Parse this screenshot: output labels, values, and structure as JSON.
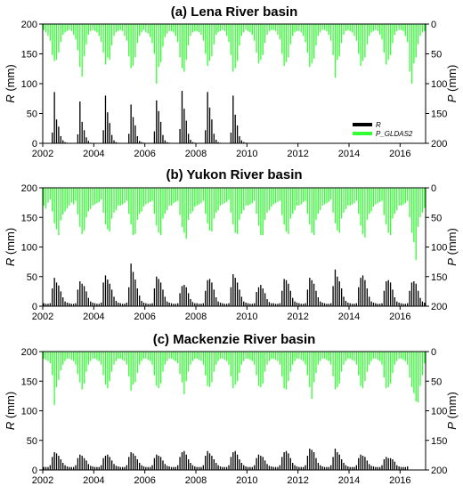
{
  "chart_data": [
    {
      "type": "bar",
      "title": "(a) Lena River basin",
      "left_axis": {
        "label": "R",
        "unit": "(mm)",
        "ylim": [
          0,
          200
        ],
        "ticks": [
          0,
          50,
          100,
          150,
          200
        ]
      },
      "right_axis": {
        "label": "P",
        "unit": "(mm)",
        "ylim": [
          200,
          0
        ],
        "ticks": [
          0,
          50,
          100,
          150,
          200
        ],
        "inverted": true
      },
      "x_ticks": [
        "2002",
        "2004",
        "2006",
        "2008",
        "2010",
        "2012",
        "2014",
        "2016"
      ],
      "x_range": [
        2002,
        2017
      ],
      "legend": {
        "placement": "right",
        "entries": [
          {
            "label": "R",
            "color": "#000000"
          },
          {
            "label": "P_GLDAS2",
            "color": "#33ff33"
          }
        ]
      },
      "series": [
        {
          "label": "R",
          "axis": "left",
          "color": "#000000",
          "start": "2002-01",
          "values": [
            0,
            0,
            0,
            0,
            18,
            86,
            40,
            28,
            12,
            5,
            2,
            1,
            0,
            0,
            0,
            0,
            15,
            70,
            36,
            22,
            10,
            4,
            1,
            0,
            0,
            0,
            0,
            0,
            22,
            80,
            52,
            34,
            14,
            5,
            2,
            1,
            0,
            0,
            0,
            0,
            16,
            65,
            44,
            30,
            12,
            4,
            2,
            1,
            0,
            0,
            0,
            0,
            20,
            72,
            54,
            36,
            14,
            5,
            2,
            1,
            0,
            0,
            0,
            0,
            24,
            88,
            58,
            38,
            16,
            6,
            2,
            1,
            0,
            0,
            0,
            0,
            22,
            86,
            60,
            40,
            16,
            6,
            2,
            1,
            0,
            0,
            0,
            0,
            18,
            80,
            48,
            30,
            12,
            5,
            2,
            1
          ]
        },
        {
          "label": "P_GLDAS2",
          "axis": "right",
          "color": "#33ff33",
          "start": "2002-01",
          "values": [
            10,
            14,
            20,
            28,
            52,
            62,
            60,
            48,
            30,
            18,
            14,
            12,
            10,
            12,
            18,
            26,
            44,
            72,
            88,
            54,
            34,
            18,
            12,
            10,
            12,
            14,
            20,
            30,
            48,
            68,
            56,
            60,
            36,
            20,
            14,
            12,
            10,
            12,
            20,
            28,
            54,
            74,
            70,
            56,
            32,
            20,
            14,
            10,
            14,
            16,
            22,
            32,
            50,
            100,
            72,
            64,
            38,
            22,
            16,
            12,
            12,
            14,
            20,
            30,
            56,
            74,
            80,
            60,
            36,
            20,
            14,
            12,
            12,
            14,
            18,
            28,
            50,
            70,
            62,
            54,
            34,
            18,
            14,
            12,
            10,
            12,
            20,
            30,
            52,
            80,
            74,
            62,
            36,
            20,
            14,
            10,
            12,
            14,
            18,
            28,
            48,
            66,
            60,
            52,
            32,
            18,
            12,
            10,
            10,
            12,
            18,
            26,
            50,
            70,
            64,
            56,
            34,
            20,
            14,
            12,
            12,
            14,
            20,
            30,
            48,
            72,
            66,
            58,
            36,
            20,
            14,
            10,
            10,
            12,
            18,
            28,
            52,
            90,
            60,
            54,
            32,
            18,
            12,
            10,
            12,
            14,
            20,
            28,
            50,
            70,
            62,
            56,
            34,
            20,
            14,
            12,
            10,
            12,
            18,
            26,
            48,
            68,
            60,
            52,
            32,
            18,
            12,
            10,
            10,
            12,
            20,
            30,
            80,
            100,
            66,
            56,
            34,
            20,
            14,
            12
          ]
        }
      ]
    },
    {
      "type": "bar",
      "title": "(b) Yukon River basin",
      "left_axis": {
        "label": "R",
        "unit": "(mm)",
        "ylim": [
          0,
          200
        ],
        "ticks": [
          0,
          50,
          100,
          150,
          200
        ]
      },
      "right_axis": {
        "label": "P",
        "unit": "(mm)",
        "ylim": [
          200,
          0
        ],
        "ticks": [
          0,
          50,
          100,
          150,
          200
        ],
        "inverted": true
      },
      "x_ticks": [
        "2002",
        "2004",
        "2006",
        "2008",
        "2010",
        "2012",
        "2014",
        "2016"
      ],
      "x_range": [
        2002,
        2017
      ],
      "series": [
        {
          "label": "R",
          "axis": "left",
          "color": "#000000",
          "start": "2002-01",
          "values": [
            5,
            4,
            4,
            5,
            30,
            48,
            40,
            35,
            25,
            15,
            8,
            6,
            5,
            4,
            4,
            5,
            28,
            42,
            38,
            34,
            25,
            14,
            8,
            6,
            5,
            4,
            4,
            6,
            40,
            52,
            45,
            38,
            28,
            16,
            9,
            6,
            5,
            4,
            4,
            6,
            32,
            72,
            58,
            45,
            30,
            18,
            9,
            6,
            5,
            4,
            4,
            5,
            30,
            50,
            46,
            40,
            28,
            16,
            8,
            6,
            5,
            4,
            4,
            5,
            22,
            34,
            36,
            32,
            22,
            12,
            7,
            5,
            5,
            4,
            4,
            5,
            26,
            44,
            46,
            40,
            28,
            15,
            8,
            6,
            5,
            4,
            4,
            5,
            32,
            54,
            48,
            40,
            28,
            16,
            8,
            6,
            5,
            4,
            4,
            5,
            24,
            32,
            36,
            30,
            22,
            12,
            7,
            5,
            5,
            4,
            4,
            5,
            26,
            46,
            44,
            38,
            26,
            14,
            8,
            6,
            5,
            4,
            4,
            5,
            28,
            48,
            44,
            38,
            26,
            15,
            8,
            6,
            5,
            4,
            4,
            5,
            34,
            62,
            50,
            42,
            30,
            16,
            9,
            6,
            5,
            4,
            4,
            5,
            32,
            48,
            52,
            44,
            30,
            16,
            8,
            6,
            5,
            4,
            4,
            5,
            26,
            42,
            44,
            40,
            28,
            15,
            8,
            6,
            5,
            4,
            4,
            5,
            26,
            40,
            42,
            38,
            26,
            14,
            8,
            6
          ]
        },
        {
          "label": "P_GLDAS2",
          "axis": "right",
          "color": "#33ff33",
          "start": "2002-01",
          "values": [
            30,
            35,
            25,
            20,
            40,
            60,
            70,
            80,
            55,
            45,
            40,
            35,
            30,
            25,
            28,
            22,
            45,
            66,
            78,
            72,
            50,
            40,
            36,
            30,
            28,
            26,
            24,
            20,
            42,
            62,
            70,
            74,
            52,
            42,
            38,
            30,
            30,
            28,
            26,
            22,
            44,
            62,
            80,
            78,
            54,
            44,
            40,
            32,
            28,
            26,
            24,
            22,
            44,
            64,
            76,
            80,
            52,
            44,
            38,
            30,
            30,
            26,
            24,
            22,
            46,
            66,
            76,
            86,
            54,
            44,
            40,
            32,
            30,
            28,
            26,
            22,
            44,
            60,
            72,
            74,
            52,
            42,
            38,
            30,
            28,
            26,
            24,
            20,
            42,
            62,
            76,
            78,
            54,
            44,
            38,
            30,
            30,
            28,
            26,
            22,
            44,
            64,
            80,
            80,
            54,
            42,
            38,
            32,
            28,
            26,
            24,
            22,
            46,
            62,
            74,
            78,
            52,
            44,
            38,
            30,
            30,
            28,
            24,
            22,
            44,
            62,
            76,
            80,
            54,
            44,
            38,
            30,
            28,
            26,
            24,
            20,
            42,
            60,
            72,
            76,
            52,
            42,
            36,
            30,
            30,
            28,
            26,
            22,
            44,
            64,
            78,
            84,
            54,
            44,
            40,
            32,
            28,
            26,
            24,
            22,
            46,
            62,
            76,
            80,
            52,
            44,
            38,
            30,
            30,
            28,
            26,
            22,
            50,
            76,
            92,
            122,
            66,
            50,
            42,
            34
          ]
        }
      ]
    },
    {
      "type": "bar",
      "title": "(c) Mackenzie River basin",
      "left_axis": {
        "label": "R",
        "unit": "(mm)",
        "ylim": [
          0,
          200
        ],
        "ticks": [
          0,
          50,
          100,
          150,
          200
        ]
      },
      "right_axis": {
        "label": "P",
        "unit": "(mm)",
        "ylim": [
          200,
          0
        ],
        "ticks": [
          0,
          50,
          100,
          150,
          200
        ],
        "inverted": true
      },
      "x_ticks": [
        "2002",
        "2004",
        "2006",
        "2008",
        "2010",
        "2012",
        "2014",
        "2016"
      ],
      "x_range": [
        2002,
        2017
      ],
      "series": [
        {
          "label": "R",
          "axis": "left",
          "color": "#000000",
          "start": "2002-01",
          "values": [
            5,
            5,
            5,
            8,
            22,
            30,
            28,
            24,
            18,
            12,
            8,
            6,
            5,
            5,
            5,
            8,
            20,
            26,
            24,
            20,
            16,
            10,
            7,
            6,
            5,
            5,
            5,
            8,
            20,
            24,
            26,
            22,
            16,
            10,
            7,
            6,
            5,
            5,
            5,
            8,
            22,
            30,
            28,
            24,
            18,
            12,
            8,
            6,
            5,
            5,
            5,
            8,
            20,
            26,
            24,
            22,
            16,
            10,
            7,
            6,
            5,
            5,
            5,
            8,
            22,
            30,
            32,
            26,
            18,
            12,
            8,
            6,
            5,
            5,
            5,
            8,
            24,
            32,
            28,
            24,
            18,
            12,
            8,
            6,
            5,
            5,
            5,
            8,
            22,
            30,
            32,
            26,
            18,
            12,
            8,
            6,
            5,
            5,
            5,
            8,
            20,
            26,
            24,
            22,
            16,
            10,
            7,
            6,
            5,
            5,
            5,
            8,
            22,
            30,
            32,
            28,
            20,
            12,
            8,
            6,
            5,
            5,
            5,
            8,
            24,
            36,
            34,
            30,
            20,
            12,
            8,
            6,
            5,
            5,
            5,
            8,
            22,
            36,
            30,
            26,
            18,
            12,
            8,
            6,
            5,
            5,
            5,
            8,
            20,
            26,
            24,
            22,
            16,
            10,
            7,
            6,
            5,
            5,
            5,
            8,
            18,
            22,
            20,
            20,
            18,
            14,
            8,
            6,
            5,
            5,
            5,
            6,
            0,
            0,
            0,
            0,
            0,
            0,
            0,
            0
          ]
        },
        {
          "label": "P_GLDAS2",
          "axis": "right",
          "color": "#33ff33",
          "start": "2002-01",
          "values": [
            12,
            14,
            16,
            20,
            40,
            90,
            60,
            48,
            32,
            22,
            16,
            12,
            12,
            14,
            16,
            22,
            38,
            52,
            64,
            54,
            34,
            22,
            16,
            12,
            12,
            14,
            16,
            22,
            40,
            56,
            62,
            50,
            34,
            22,
            16,
            12,
            12,
            14,
            16,
            22,
            42,
            66,
            56,
            52,
            36,
            22,
            16,
            12,
            12,
            14,
            16,
            22,
            40,
            58,
            62,
            54,
            34,
            22,
            16,
            12,
            12,
            14,
            16,
            20,
            38,
            52,
            72,
            50,
            34,
            22,
            16,
            12,
            12,
            14,
            16,
            22,
            40,
            58,
            60,
            52,
            34,
            22,
            16,
            12,
            12,
            14,
            16,
            22,
            42,
            62,
            56,
            50,
            36,
            22,
            16,
            12,
            12,
            14,
            16,
            22,
            40,
            58,
            60,
            54,
            34,
            22,
            16,
            12,
            12,
            14,
            16,
            22,
            42,
            62,
            64,
            50,
            34,
            22,
            16,
            12,
            12,
            14,
            16,
            22,
            40,
            60,
            80,
            52,
            36,
            22,
            16,
            12,
            12,
            14,
            16,
            22,
            42,
            64,
            60,
            54,
            34,
            22,
            16,
            12,
            12,
            14,
            16,
            22,
            40,
            58,
            62,
            50,
            34,
            22,
            16,
            12,
            12,
            14,
            16,
            22,
            44,
            62,
            60,
            54,
            36,
            22,
            16,
            12,
            12,
            14,
            16,
            22,
            44,
            60,
            70,
            84,
            86,
            58,
            40,
            20
          ]
        }
      ]
    }
  ]
}
